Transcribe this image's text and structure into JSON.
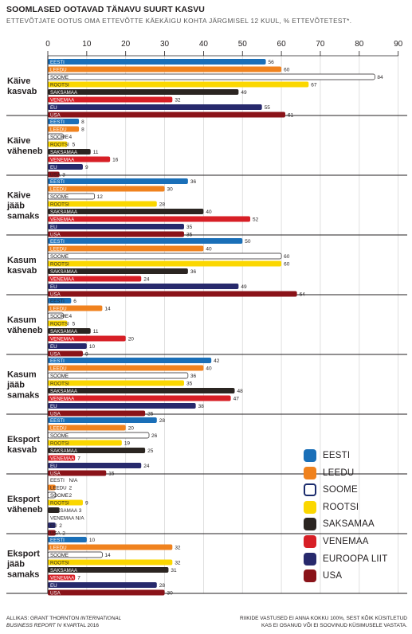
{
  "title": "SOOMLASED OOTAVAD TÄNAVU SUURT KASVU",
  "subtitle": "ETTEVÕTJATE OOTUS OMA ETTEVÕTTE KÄEKÄIGU KOHTA JÄRGMISEL 12 KUUL, % ETTEVÕTETEST*.",
  "source": {
    "line1_prefix": "ALLIKAS: GRANT THORNTON ",
    "line1_italic": "INTERNATIONAL",
    "line2_italic": "BUSINESS REPORT",
    "line2_suffix": " IV KVARTAL 2016"
  },
  "footnote": {
    "line1": "RIIKIDE VASTUSED EI ANNA KOKKU 100%, SEST KÕIK KÜSITLETUD",
    "line2": "KAS EI OSANUD VÕI EI SOOVINUD KÜSIMUSELE VASTATA."
  },
  "colors": {
    "EESTI": "#1a6fb8",
    "LEEDU": "#f0821e",
    "SOOME": "#ffffff",
    "ROOTSI": "#fbd700",
    "SAKSAMAA": "#2b2521",
    "VENEMAA": "#d71f26",
    "EU": "#27296c",
    "USA": "#8a1319"
  },
  "legend": [
    {
      "key": "EESTI",
      "label": "EESTI"
    },
    {
      "key": "LEEDU",
      "label": "LEEDU"
    },
    {
      "key": "SOOME",
      "label": "SOOME"
    },
    {
      "key": "ROOTSI",
      "label": "ROOTSI"
    },
    {
      "key": "SAKSAMAA",
      "label": "SAKSAMAA"
    },
    {
      "key": "VENEMAA",
      "label": "VENEMAA"
    },
    {
      "key": "EU",
      "label": "EUROOPA LIIT"
    },
    {
      "key": "USA",
      "label": "USA"
    }
  ],
  "chart_data": {
    "type": "bar",
    "orientation": "horizontal",
    "xlim": [
      0,
      90
    ],
    "x_ticks": [
      0,
      10,
      20,
      30,
      40,
      50,
      60,
      70,
      80,
      90
    ],
    "grid": true,
    "legend_position": "bottom-right",
    "series_names": [
      "EESTI",
      "LEEDU",
      "SOOME",
      "ROOTSI",
      "SAKSAMAA",
      "VENEMAA",
      "EU",
      "USA"
    ],
    "groups": [
      {
        "label": [
          "Käive",
          "kasvab"
        ],
        "values": [
          56,
          60,
          84,
          67,
          49,
          32,
          55,
          61
        ]
      },
      {
        "label": [
          "Käive",
          "väheneb"
        ],
        "values": [
          8,
          8,
          4,
          5,
          11,
          16,
          9,
          3
        ]
      },
      {
        "label": [
          "Käive",
          "jääb",
          "samaks"
        ],
        "values": [
          36,
          30,
          12,
          28,
          40,
          52,
          35,
          35
        ]
      },
      {
        "label": [
          "Kasum",
          "kasvab"
        ],
        "values": [
          50,
          40,
          60,
          60,
          36,
          24,
          49,
          64
        ]
      },
      {
        "label": [
          "Kasum",
          "väheneb"
        ],
        "values": [
          6,
          14,
          4,
          5,
          11,
          20,
          10,
          9
        ]
      },
      {
        "label": [
          "Kasum",
          "jääb",
          "samaks"
        ],
        "values": [
          42,
          40,
          36,
          35,
          48,
          47,
          38,
          25
        ]
      },
      {
        "label": [
          "Eksport",
          "kasvab"
        ],
        "values": [
          28,
          20,
          26,
          19,
          25,
          7,
          24,
          15
        ]
      },
      {
        "label": [
          "Eksport",
          "väheneb"
        ],
        "values": [
          null,
          2,
          2,
          9,
          3,
          null,
          2,
          2
        ],
        "value_labels": [
          "N/A",
          "2",
          "2",
          "9",
          "3",
          "N/A",
          "2",
          "2"
        ]
      },
      {
        "label": [
          "Eksport",
          "jääb",
          "samaks"
        ],
        "values": [
          10,
          32,
          14,
          32,
          31,
          7,
          28,
          30
        ]
      }
    ]
  }
}
